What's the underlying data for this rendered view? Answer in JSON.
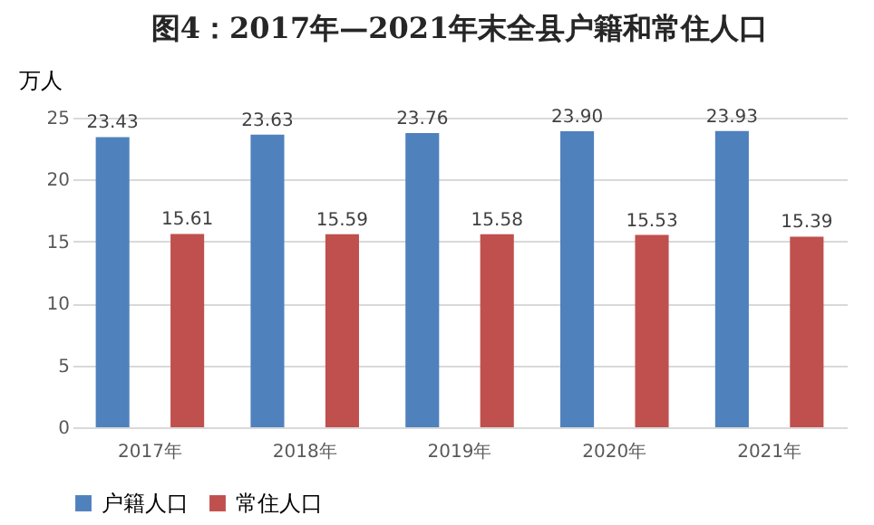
{
  "chart_data": {
    "type": "bar",
    "title": "图4：2017年—2021年末全县户籍和常住人口",
    "ylabel": "万人",
    "categories": [
      "2017年",
      "2018年",
      "2019年",
      "2020年",
      "2021年"
    ],
    "series": [
      {
        "name": "户籍人口",
        "color": "#4f81bd",
        "values": [
          23.43,
          23.63,
          23.76,
          23.9,
          23.93
        ],
        "value_labels": [
          "23.43",
          "23.63",
          "23.76",
          "23.90",
          "23.93"
        ]
      },
      {
        "name": "常住人口",
        "color": "#c0504d",
        "values": [
          15.61,
          15.59,
          15.58,
          15.53,
          15.39
        ],
        "value_labels": [
          "15.61",
          "15.59",
          "15.58",
          "15.53",
          "15.39"
        ]
      }
    ],
    "ylim": [
      0,
      25
    ],
    "yticks": [
      0,
      5,
      10,
      15,
      20,
      25
    ],
    "grid": "y",
    "legend": "bottom"
  }
}
